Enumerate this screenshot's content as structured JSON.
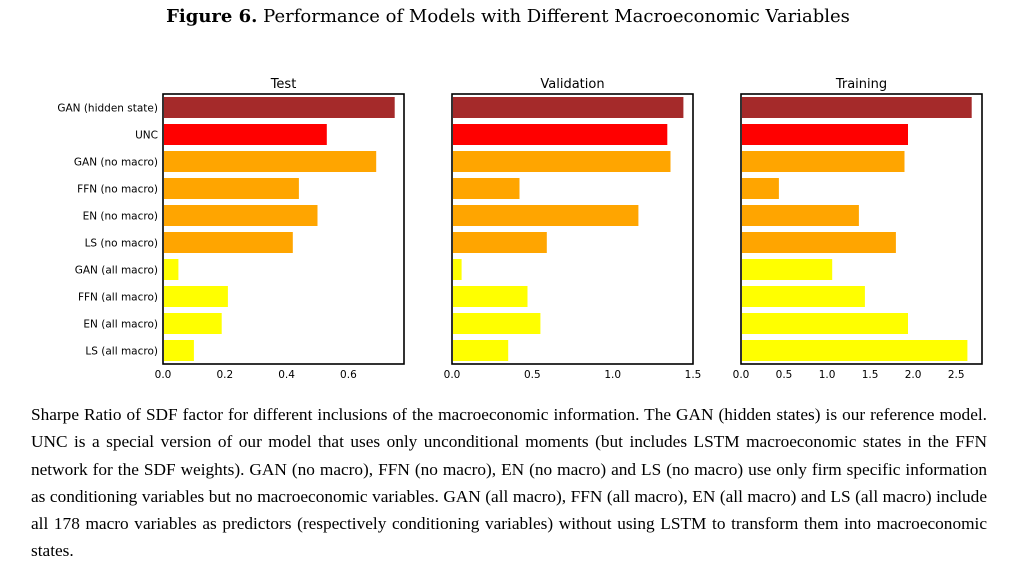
{
  "figure": {
    "number_label": "Figure 6.",
    "title": "Performance of Models with Different Macroeconomic Variables"
  },
  "colors": {
    "dark_red": "#A52A2A",
    "red": "#FF0000",
    "orange": "#FFA500",
    "yellow": "#FFFF00"
  },
  "chart_data": [
    {
      "type": "bar",
      "orientation": "horizontal",
      "title": "Test",
      "categories": [
        "GAN (hidden state)",
        "UNC",
        "GAN (no macro)",
        "FFN (no macro)",
        "EN (no macro)",
        "LS (no macro)",
        "GAN (all macro)",
        "FFN (all macro)",
        "EN (all macro)",
        "LS (all macro)"
      ],
      "values": [
        0.75,
        0.53,
        0.69,
        0.44,
        0.5,
        0.42,
        0.05,
        0.21,
        0.19,
        0.1
      ],
      "bar_colors": [
        "dark_red",
        "red",
        "orange",
        "orange",
        "orange",
        "orange",
        "yellow",
        "yellow",
        "yellow",
        "yellow"
      ],
      "xlim": [
        0,
        0.78
      ],
      "xticks": [
        0.0,
        0.2,
        0.4,
        0.6
      ],
      "xtick_labels": [
        "0.0",
        "0.2",
        "0.4",
        "0.6"
      ]
    },
    {
      "type": "bar",
      "orientation": "horizontal",
      "title": "Validation",
      "categories": [
        "GAN (hidden state)",
        "UNC",
        "GAN (no macro)",
        "FFN (no macro)",
        "EN (no macro)",
        "LS (no macro)",
        "GAN (all macro)",
        "FFN (all macro)",
        "EN (all macro)",
        "LS (all macro)"
      ],
      "values": [
        1.44,
        1.34,
        1.36,
        0.42,
        1.16,
        0.59,
        0.06,
        0.47,
        0.55,
        0.35
      ],
      "bar_colors": [
        "dark_red",
        "red",
        "orange",
        "orange",
        "orange",
        "orange",
        "yellow",
        "yellow",
        "yellow",
        "yellow"
      ],
      "xlim": [
        0,
        1.5
      ],
      "xticks": [
        0.0,
        0.5,
        1.0,
        1.5
      ],
      "xtick_labels": [
        "0.0",
        "0.5",
        "1.0",
        "1.5"
      ]
    },
    {
      "type": "bar",
      "orientation": "horizontal",
      "title": "Training",
      "categories": [
        "GAN (hidden state)",
        "UNC",
        "GAN (no macro)",
        "FFN (no macro)",
        "EN (no macro)",
        "LS (no macro)",
        "GAN (all macro)",
        "FFN (all macro)",
        "EN (all macro)",
        "LS (all macro)"
      ],
      "values": [
        2.68,
        1.94,
        1.9,
        0.44,
        1.37,
        1.8,
        1.06,
        1.44,
        1.94,
        2.63
      ],
      "bar_colors": [
        "dark_red",
        "red",
        "orange",
        "orange",
        "orange",
        "orange",
        "yellow",
        "yellow",
        "yellow",
        "yellow"
      ],
      "xlim": [
        0,
        2.8
      ],
      "xticks": [
        0.0,
        0.5,
        1.0,
        1.5,
        2.0,
        2.5
      ],
      "xtick_labels": [
        "0.0",
        "0.5",
        "1.0",
        "1.5",
        "2.0",
        "2.5"
      ]
    }
  ],
  "caption": "Sharpe Ratio of SDF factor for different inclusions of the macroeconomic information. The GAN (hidden states) is our reference model. UNC is a special version of our model that uses only unconditional moments (but includes LSTM macroeconomic states in the FFN network for the SDF weights). GAN (no macro), FFN (no macro), EN (no macro) and LS (no macro) use only firm specific information as conditioning variables but no macroeconomic variables. GAN (all macro), FFN (all macro), EN (all macro) and LS (all macro) include all 178 macro variables as predictors (respectively conditioning variables) without using LSTM to transform them into macroeconomic states."
}
